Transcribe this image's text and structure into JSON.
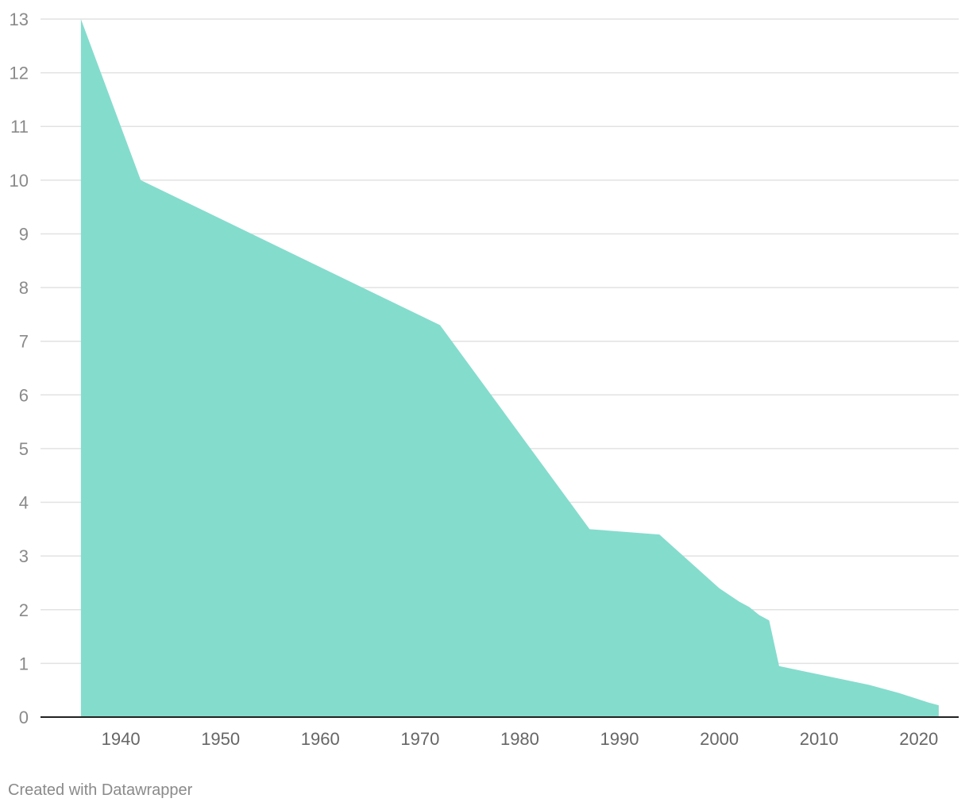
{
  "credit": "Created with Datawrapper",
  "colors": {
    "area": "#84dccd",
    "grid": "#e2e2e2",
    "axis": "#222222",
    "tick_text": "#8a8a8a"
  },
  "chart_data": {
    "type": "area",
    "title": "",
    "xlabel": "",
    "ylabel": "",
    "xlim": [
      1936,
      2022
    ],
    "ylim": [
      0,
      13
    ],
    "grid": true,
    "x_ticks": [
      1940,
      1950,
      1960,
      1970,
      1980,
      1990,
      2000,
      2010,
      2020
    ],
    "y_ticks": [
      0,
      1,
      2,
      3,
      4,
      5,
      6,
      7,
      8,
      9,
      10,
      11,
      12,
      13
    ],
    "series": [
      {
        "x": [
          1936,
          1942,
          1972,
          1987,
          1994,
          2000,
          2002,
          2003,
          2004,
          2005,
          2006,
          2015,
          2018,
          2021,
          2022
        ],
        "values": [
          13,
          10,
          7.3,
          3.5,
          3.4,
          2.4,
          2.15,
          2.05,
          1.9,
          1.8,
          0.95,
          0.6,
          0.45,
          0.27,
          0.22
        ]
      }
    ]
  }
}
